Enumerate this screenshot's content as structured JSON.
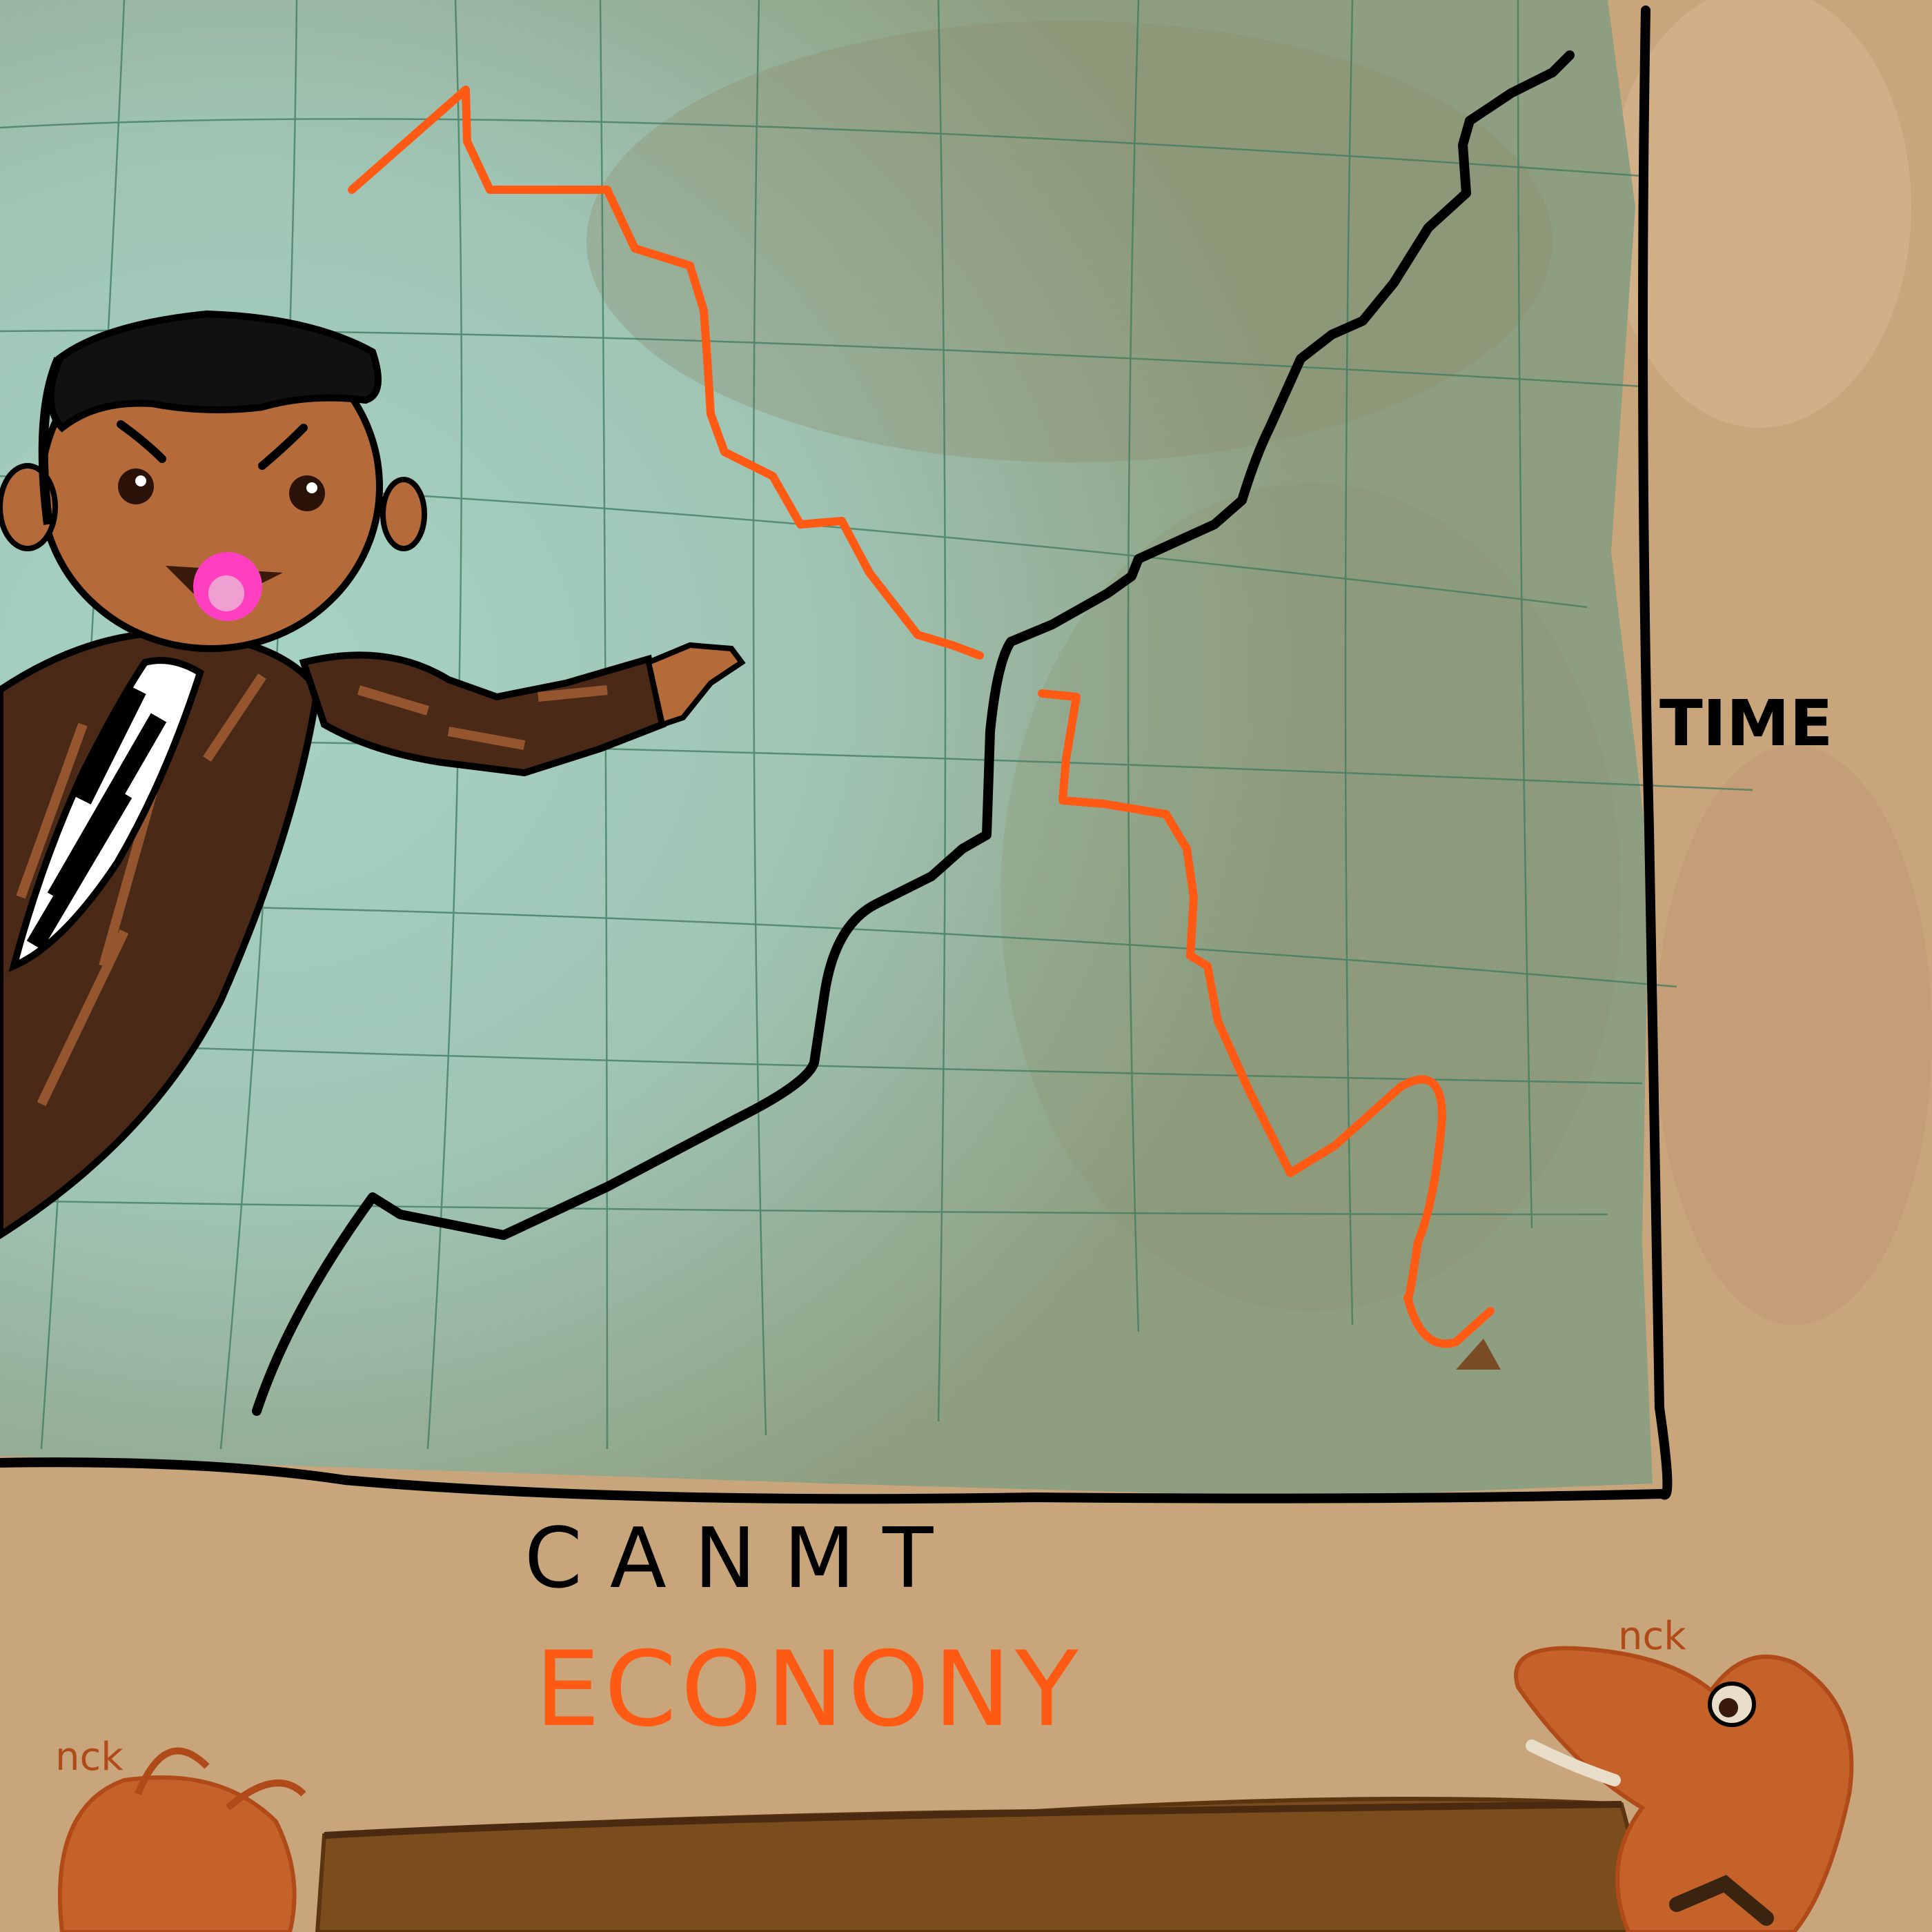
{
  "drawing": {
    "labels": {
      "time": "TIME",
      "canmt": "CANMT",
      "economy": "ECONONY",
      "signature_left": "nck",
      "signature_right": "nck"
    },
    "colors": {
      "background": "#c9a57c",
      "board": "#98ad98",
      "board_glow": "#a6d3c6",
      "ink": "#000000",
      "orange": "#ff5a14",
      "suit": "#4a2a17",
      "skin": "#b56a3a",
      "gum": "#ff3fbf",
      "desk": "#7b4d1d",
      "fox": "#c4622a"
    }
  }
}
